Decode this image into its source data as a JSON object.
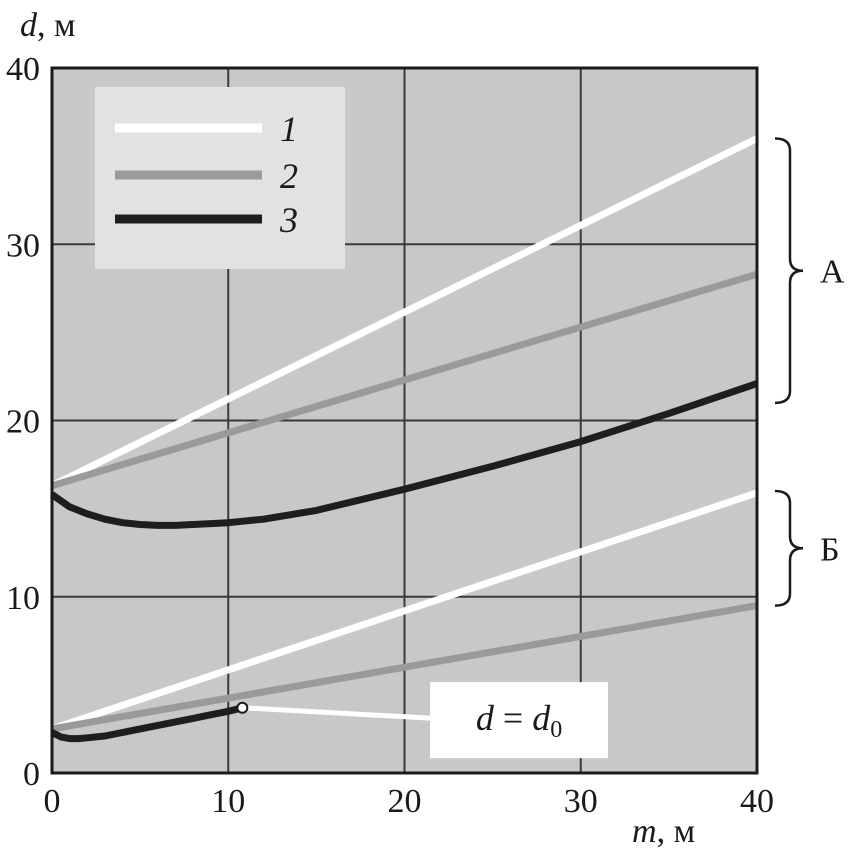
{
  "chart_data": {
    "type": "line",
    "xlabel_var": "m",
    "xlabel_unit": ", м",
    "ylabel_var": "d",
    "ylabel_unit": ", м",
    "xlim": [
      0,
      40
    ],
    "ylim": [
      0,
      40
    ],
    "xticks": [
      "0",
      "10",
      "20",
      "30",
      "40"
    ],
    "yticks": [
      "0",
      "10",
      "20",
      "30",
      "40"
    ],
    "grid": true,
    "legend_position": "top-left",
    "colors": {
      "plot_bg": "#c8c8c8",
      "grid": "#3a3a3a",
      "series1": "#ffffff",
      "series2": "#9a9a9a",
      "series3": "#1e1e1e",
      "legend_bg": "#e2e2e2"
    },
    "legend": [
      {
        "label": "1",
        "style": "series1"
      },
      {
        "label": "2",
        "style": "series2"
      },
      {
        "label": "3",
        "style": "series3"
      }
    ],
    "groups": [
      {
        "label": "А",
        "series": [
          {
            "legend": "1",
            "x": [
              0,
              40
            ],
            "y": [
              16.3,
              36.0
            ]
          },
          {
            "legend": "2",
            "x": [
              0,
              40
            ],
            "y": [
              16.3,
              28.3
            ]
          },
          {
            "legend": "3",
            "x": [
              0,
              1,
              2,
              3,
              4,
              5,
              6,
              7,
              8,
              10,
              12,
              15,
              20,
              25,
              30,
              35,
              40
            ],
            "y": [
              15.8,
              15.1,
              14.7,
              14.4,
              14.2,
              14.1,
              14.05,
              14.05,
              14.1,
              14.2,
              14.4,
              14.9,
              16.1,
              17.4,
              18.8,
              20.4,
              22.1
            ]
          }
        ],
        "bracket_range": [
          21.0,
          36.0
        ]
      },
      {
        "label": "Б",
        "series": [
          {
            "legend": "1",
            "x": [
              0,
              40
            ],
            "y": [
              2.5,
              15.9
            ]
          },
          {
            "legend": "2",
            "x": [
              0,
              40
            ],
            "y": [
              2.5,
              9.5
            ]
          },
          {
            "legend": "3",
            "x": [
              0,
              0.5,
              1,
              1.5,
              2,
              3,
              4,
              5,
              6,
              7,
              8,
              9,
              10,
              10.8
            ],
            "y": [
              2.3,
              2.05,
              1.95,
              1.95,
              2.0,
              2.1,
              2.3,
              2.5,
              2.7,
              2.9,
              3.1,
              3.3,
              3.5,
              3.7
            ]
          }
        ],
        "bracket_range": [
          9.5,
          16.0
        ]
      }
    ],
    "annotation": {
      "text_var": "d",
      "text_eq": " = ",
      "text_rhs": "d",
      "text_sub": "0",
      "point": {
        "x": 10.8,
        "y": 3.7
      },
      "box_center": {
        "x": 26.5,
        "y": 3.0
      }
    }
  }
}
